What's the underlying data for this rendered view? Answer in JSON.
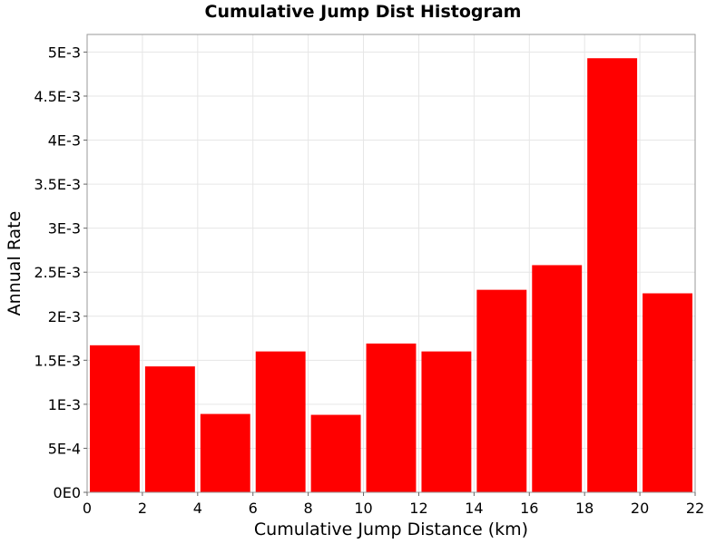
{
  "chart_data": {
    "type": "bar",
    "title": "Cumulative Jump Dist Histogram",
    "xlabel": "Cumulative Jump Distance (km)",
    "ylabel": "Annual Rate",
    "xlim": [
      0,
      22
    ],
    "ylim": [
      0,
      0.0052
    ],
    "bin_width": 2,
    "x": [
      1,
      3,
      5,
      7,
      9,
      11,
      13,
      15,
      17,
      19,
      21
    ],
    "values": [
      0.00167,
      0.00143,
      0.00089,
      0.0016,
      0.00088,
      0.00169,
      0.0016,
      0.0023,
      0.00258,
      0.00493,
      0.00226
    ],
    "x_ticks": [
      "0",
      "2",
      "4",
      "6",
      "8",
      "10",
      "12",
      "14",
      "16",
      "18",
      "20",
      "22"
    ],
    "y_ticks": [
      "0E0",
      "5E-4",
      "1E-3",
      "1.5E-3",
      "2E-3",
      "2.5E-3",
      "3E-3",
      "3.5E-3",
      "4E-3",
      "4.5E-3",
      "5E-3"
    ],
    "grid": true,
    "bar_color": "#ff0000"
  }
}
